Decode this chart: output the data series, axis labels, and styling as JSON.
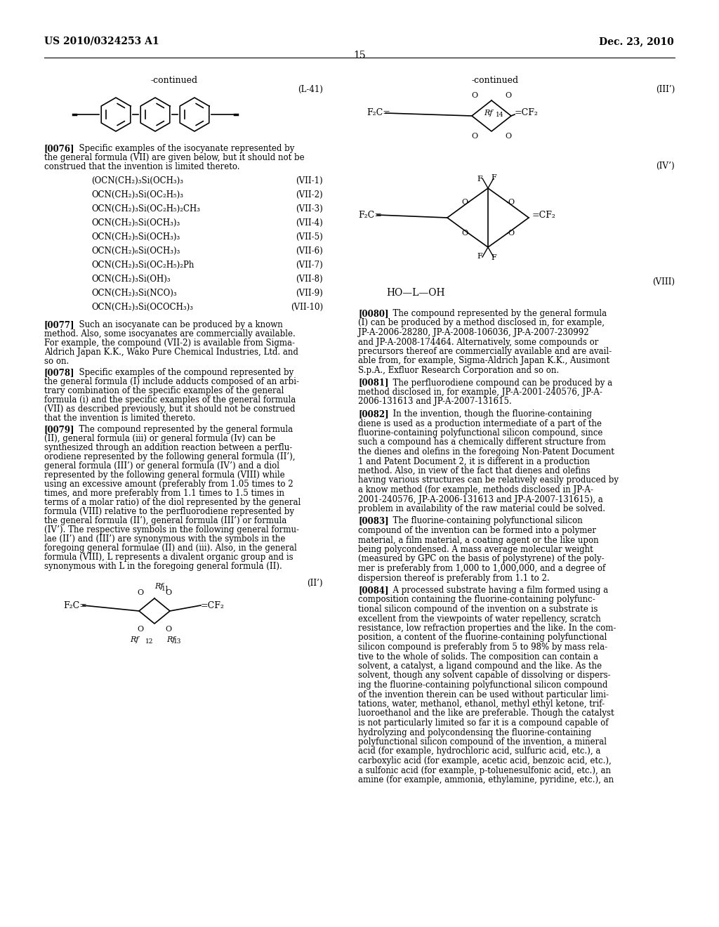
{
  "header_left": "US 2010/0324253 A1",
  "header_right": "Dec. 23, 2010",
  "page_number": "15",
  "background_color": "#ffffff",
  "text_color": "#000000"
}
